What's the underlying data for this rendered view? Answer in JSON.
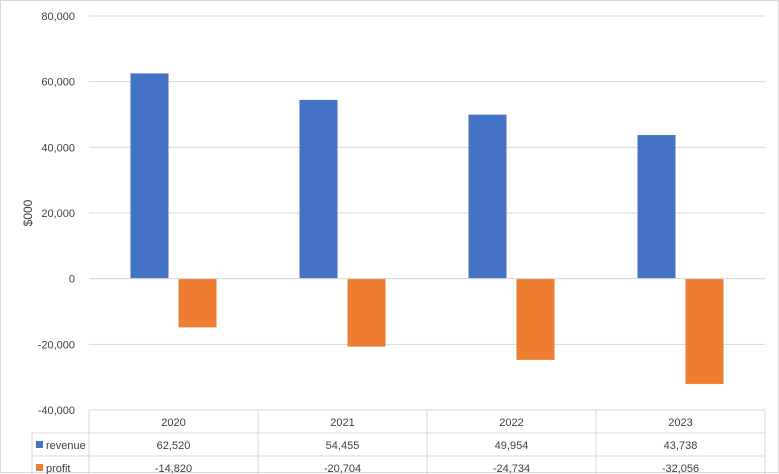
{
  "chart_data": {
    "type": "bar",
    "title": "",
    "xlabel": "",
    "ylabel": "$000",
    "ylim": [
      -40000,
      80000
    ],
    "yticks": [
      -40000,
      -20000,
      0,
      20000,
      40000,
      60000,
      80000
    ],
    "ytick_labels": [
      "-40,000",
      "-20,000",
      "0",
      "20,000",
      "40,000",
      "60,000",
      "80,000"
    ],
    "grid": true,
    "legend": "data-table",
    "categories": [
      "2020",
      "2021",
      "2022",
      "2023"
    ],
    "series": [
      {
        "name": "revenue",
        "color": "#4472c4",
        "values": [
          62520,
          54455,
          49954,
          43738
        ],
        "labels": [
          "62,520",
          "54,455",
          "49,954",
          "43,738"
        ]
      },
      {
        "name": "profit",
        "color": "#ed7d31",
        "values": [
          -14820,
          -20704,
          -24734,
          -32056
        ],
        "labels": [
          "-14,820",
          "-20,704",
          "-24,734",
          "-32,056"
        ]
      }
    ]
  }
}
